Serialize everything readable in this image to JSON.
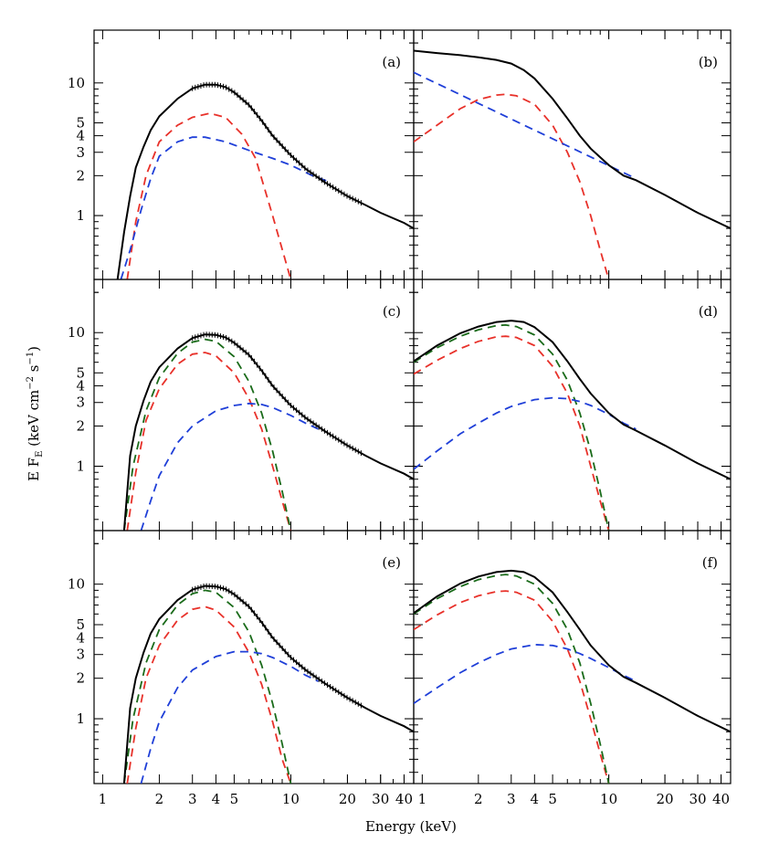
{
  "chart_data": {
    "type": "line",
    "xlabel": "Energy (keV)",
    "ylabel": "E F_E (keV cm^-2 s^-1)",
    "xscale": "log",
    "yscale": "log",
    "xlim": [
      0.9,
      45
    ],
    "ylim": [
      0.33,
      25
    ],
    "x_tick_values": [
      1,
      2,
      3,
      4,
      5,
      10,
      20,
      30,
      40
    ],
    "x_tick_labels": [
      "1",
      "2",
      "3",
      "4",
      "5",
      "10",
      "20",
      "30",
      "40"
    ],
    "y_tick_values": [
      1,
      2,
      3,
      4,
      5,
      10
    ],
    "y_tick_labels": [
      "1",
      "2",
      "3",
      "4",
      "5",
      "10"
    ],
    "series_colors": {
      "total": "#000000",
      "red": "#e8312a",
      "blue": "#1f3fd8",
      "green": "#1a6b1a"
    },
    "panels": [
      {
        "label": "(a)",
        "data_points": true,
        "series": [
          {
            "color": "red",
            "style": "dashed",
            "x": [
              1.35,
              1.5,
              1.7,
              2.0,
              2.5,
              3.0,
              3.7,
              4.5,
              5.5,
              6.5,
              8.0,
              10.0
            ],
            "y": [
              0.33,
              0.9,
              2.0,
              3.6,
              4.8,
              5.5,
              5.9,
              5.5,
              4.1,
              2.7,
              1.0,
              0.33
            ]
          },
          {
            "color": "blue",
            "style": "dashed",
            "x": [
              1.25,
              1.4,
              1.6,
              1.8,
              2.0,
              2.5,
              3.0,
              3.5,
              4.5,
              6.0,
              8.0,
              10.0,
              13.0,
              16.0
            ],
            "y": [
              0.33,
              0.55,
              1.1,
              1.9,
              2.8,
              3.6,
              3.9,
              3.9,
              3.6,
              3.1,
              2.7,
              2.4,
              2.0,
              1.8
            ]
          },
          {
            "color": "total",
            "style": "solid",
            "x": [
              1.2,
              1.3,
              1.4,
              1.5,
              1.65,
              1.8,
              2.0,
              2.5,
              3.0,
              3.5,
              4.0,
              4.5,
              5.0,
              6.0,
              7.0,
              8.0,
              10.0,
              12.0,
              15.0,
              20.0,
              25.0,
              30.0,
              40.0,
              45.0
            ],
            "y": [
              0.33,
              0.75,
              1.4,
              2.3,
              3.3,
              4.4,
              5.6,
              7.6,
              9.1,
              9.7,
              9.7,
              9.3,
              8.5,
              6.8,
              5.2,
              4.0,
              2.85,
              2.25,
              1.8,
              1.4,
              1.2,
              1.05,
              0.88,
              0.8
            ]
          }
        ]
      },
      {
        "label": "(b)",
        "data_points": false,
        "series": [
          {
            "color": "red",
            "style": "dashed",
            "x": [
              0.9,
              1.2,
              1.6,
              2.0,
              2.5,
              2.8,
              3.2,
              4.0,
              5.0,
              6.0,
              7.0,
              8.0,
              9.0,
              10.0
            ],
            "y": [
              3.6,
              4.8,
              6.4,
              7.5,
              8.1,
              8.2,
              8.0,
              6.9,
              4.8,
              3.0,
              1.8,
              1.0,
              0.55,
              0.33
            ]
          },
          {
            "color": "blue",
            "style": "dashed",
            "x": [
              0.9,
              14.0
            ],
            "y": [
              12.0,
              1.9
            ]
          },
          {
            "color": "total",
            "style": "solid",
            "x": [
              0.9,
              1.2,
              1.6,
              2.0,
              2.5,
              3.0,
              3.5,
              4.0,
              5.0,
              6.0,
              7.0,
              8.0,
              10.0,
              12.0,
              14.0,
              20.0,
              30.0,
              45.0
            ],
            "y": [
              17.5,
              16.8,
              16.2,
              15.6,
              14.9,
              14.0,
              12.5,
              10.8,
              7.6,
              5.4,
              4.0,
              3.2,
              2.4,
              2.0,
              1.85,
              1.43,
              1.05,
              0.8
            ]
          }
        ]
      },
      {
        "label": "(c)",
        "data_points": true,
        "series": [
          {
            "color": "red",
            "style": "dashed",
            "x": [
              1.35,
              1.5,
              1.7,
              2.0,
              2.5,
              3.0,
              3.5,
              4.0,
              5.0,
              6.0,
              7.0,
              8.0,
              9.0,
              10.0
            ],
            "y": [
              0.33,
              0.9,
              2.2,
              3.8,
              5.8,
              6.9,
              7.1,
              6.7,
              5.0,
              3.2,
              1.9,
              1.0,
              0.55,
              0.33
            ]
          },
          {
            "color": "green",
            "style": "dashed",
            "x": [
              1.3,
              1.45,
              1.7,
              2.0,
              2.5,
              3.0,
              3.5,
              4.0,
              5.0,
              6.0,
              7.0,
              8.0,
              9.0,
              10.0
            ],
            "y": [
              0.33,
              1.0,
              2.6,
              4.6,
              7.0,
              8.5,
              8.9,
              8.6,
              6.6,
              4.3,
              2.5,
              1.3,
              0.65,
              0.33
            ]
          },
          {
            "color": "blue",
            "style": "dashed",
            "x": [
              1.6,
              1.8,
              2.0,
              2.5,
              3.0,
              4.0,
              5.0,
              6.0,
              7.0,
              8.0,
              10.0,
              12.0,
              14.0
            ],
            "y": [
              0.33,
              0.55,
              0.85,
              1.5,
              2.0,
              2.6,
              2.85,
              2.95,
              2.9,
              2.75,
              2.4,
              2.1,
              1.9
            ]
          },
          {
            "color": "total",
            "style": "solid",
            "x": [
              1.3,
              1.4,
              1.5,
              1.65,
              1.8,
              2.0,
              2.5,
              3.0,
              3.5,
              4.0,
              4.5,
              5.0,
              6.0,
              7.0,
              8.0,
              10.0,
              12.0,
              15.0,
              20.0,
              25.0,
              30.0,
              40.0,
              45.0
            ],
            "y": [
              0.33,
              1.2,
              2.0,
              3.1,
              4.3,
              5.5,
              7.6,
              9.1,
              9.7,
              9.6,
              9.2,
              8.4,
              6.8,
              5.2,
              4.0,
              2.85,
              2.3,
              1.85,
              1.43,
              1.2,
              1.05,
              0.88,
              0.8
            ]
          }
        ]
      },
      {
        "label": "(d)",
        "data_points": false,
        "series": [
          {
            "color": "red",
            "style": "dashed",
            "x": [
              0.9,
              1.2,
              1.6,
              2.0,
              2.5,
              2.8,
              3.2,
              4.0,
              5.0,
              6.0,
              7.0,
              8.0,
              9.0,
              10.0
            ],
            "y": [
              4.9,
              6.2,
              7.6,
              8.6,
              9.3,
              9.4,
              9.2,
              8.0,
              5.6,
              3.5,
              2.0,
              1.0,
              0.55,
              0.33
            ]
          },
          {
            "color": "green",
            "style": "dashed",
            "x": [
              0.9,
              1.2,
              1.6,
              2.0,
              2.5,
              2.8,
              3.2,
              4.0,
              5.0,
              6.0,
              7.0,
              8.0,
              9.0,
              10.0
            ],
            "y": [
              6.0,
              7.7,
              9.4,
              10.5,
              11.3,
              11.4,
              11.1,
              9.6,
              6.9,
              4.4,
              2.5,
              1.3,
              0.65,
              0.33
            ]
          },
          {
            "color": "blue",
            "style": "dashed",
            "x": [
              0.9,
              1.2,
              1.6,
              2.0,
              2.5,
              3.0,
              4.0,
              5.0,
              6.0,
              7.0,
              8.0,
              10.0,
              12.0,
              14.0
            ],
            "y": [
              0.95,
              1.3,
              1.75,
              2.1,
              2.5,
              2.8,
              3.15,
              3.25,
              3.2,
              3.05,
              2.85,
              2.45,
              2.1,
              1.9
            ]
          },
          {
            "color": "total",
            "style": "solid",
            "x": [
              0.9,
              1.2,
              1.6,
              2.0,
              2.5,
              3.0,
              3.5,
              4.0,
              5.0,
              6.0,
              7.0,
              8.0,
              10.0,
              12.0,
              14.0,
              20.0,
              30.0,
              45.0
            ],
            "y": [
              6.1,
              8.0,
              9.9,
              11.1,
              12.0,
              12.3,
              12.0,
              11.0,
              8.5,
              6.1,
              4.5,
              3.5,
              2.5,
              2.05,
              1.85,
              1.43,
              1.05,
              0.8
            ]
          }
        ]
      },
      {
        "label": "(e)",
        "data_points": true,
        "series": [
          {
            "color": "red",
            "style": "dashed",
            "x": [
              1.35,
              1.5,
              1.7,
              2.0,
              2.5,
              3.0,
              3.5,
              4.0,
              5.0,
              6.0,
              7.0,
              8.0,
              9.0,
              10.0
            ],
            "y": [
              0.33,
              0.85,
              2.0,
              3.5,
              5.4,
              6.5,
              6.8,
              6.4,
              4.8,
              3.1,
              1.8,
              0.95,
              0.5,
              0.33
            ]
          },
          {
            "color": "green",
            "style": "dashed",
            "x": [
              1.3,
              1.45,
              1.7,
              2.0,
              2.5,
              3.0,
              3.5,
              4.0,
              5.0,
              6.0,
              7.0,
              8.0,
              9.0,
              10.0
            ],
            "y": [
              0.33,
              1.0,
              2.6,
              4.6,
              7.0,
              8.5,
              9.0,
              8.7,
              6.7,
              4.4,
              2.5,
              1.3,
              0.65,
              0.33
            ]
          },
          {
            "color": "blue",
            "style": "dashed",
            "x": [
              1.6,
              1.8,
              2.0,
              2.5,
              3.0,
              4.0,
              5.0,
              6.0,
              7.0,
              8.0,
              10.0,
              12.0,
              14.0
            ],
            "y": [
              0.33,
              0.6,
              0.95,
              1.7,
              2.3,
              2.9,
              3.15,
              3.15,
              3.05,
              2.85,
              2.45,
              2.1,
              1.9
            ]
          },
          {
            "color": "total",
            "style": "solid",
            "x": [
              1.3,
              1.4,
              1.5,
              1.65,
              1.8,
              2.0,
              2.5,
              3.0,
              3.5,
              4.0,
              4.5,
              5.0,
              6.0,
              7.0,
              8.0,
              10.0,
              12.0,
              15.0,
              20.0,
              25.0,
              30.0,
              40.0,
              45.0
            ],
            "y": [
              0.33,
              1.2,
              2.0,
              3.1,
              4.3,
              5.5,
              7.6,
              9.1,
              9.7,
              9.6,
              9.2,
              8.4,
              6.8,
              5.2,
              4.0,
              2.85,
              2.3,
              1.85,
              1.43,
              1.2,
              1.05,
              0.88,
              0.8
            ]
          }
        ]
      },
      {
        "label": "(f)",
        "data_points": false,
        "series": [
          {
            "color": "red",
            "style": "dashed",
            "x": [
              0.9,
              1.2,
              1.6,
              2.0,
              2.5,
              2.8,
              3.2,
              4.0,
              5.0,
              6.0,
              7.0,
              8.0,
              9.0,
              10.0
            ],
            "y": [
              4.6,
              5.9,
              7.3,
              8.2,
              8.8,
              8.9,
              8.7,
              7.6,
              5.3,
              3.3,
              1.9,
              1.0,
              0.55,
              0.33
            ]
          },
          {
            "color": "green",
            "style": "dashed",
            "x": [
              0.9,
              1.2,
              1.6,
              2.0,
              2.5,
              2.8,
              3.2,
              4.0,
              5.0,
              6.0,
              7.0,
              8.0,
              9.0,
              10.0
            ],
            "y": [
              6.0,
              7.8,
              9.6,
              10.8,
              11.6,
              11.8,
              11.5,
              10.0,
              7.2,
              4.6,
              2.6,
              1.3,
              0.65,
              0.33
            ]
          },
          {
            "color": "blue",
            "style": "dashed",
            "x": [
              0.9,
              1.2,
              1.6,
              2.0,
              2.5,
              3.0,
              4.0,
              5.0,
              6.0,
              7.0,
              8.0,
              10.0,
              12.0,
              14.0
            ],
            "y": [
              1.3,
              1.7,
              2.2,
              2.6,
              3.0,
              3.3,
              3.55,
              3.5,
              3.3,
              3.05,
              2.8,
              2.4,
              2.1,
              1.9
            ]
          },
          {
            "color": "total",
            "style": "solid",
            "x": [
              0.9,
              1.2,
              1.6,
              2.0,
              2.5,
              3.0,
              3.5,
              4.0,
              5.0,
              6.0,
              7.0,
              8.0,
              10.0,
              12.0,
              14.0,
              20.0,
              30.0,
              45.0
            ],
            "y": [
              6.1,
              8.1,
              10.1,
              11.4,
              12.3,
              12.6,
              12.3,
              11.3,
              8.7,
              6.2,
              4.6,
              3.5,
              2.5,
              2.05,
              1.85,
              1.43,
              1.05,
              0.8
            ]
          }
        ]
      }
    ]
  }
}
